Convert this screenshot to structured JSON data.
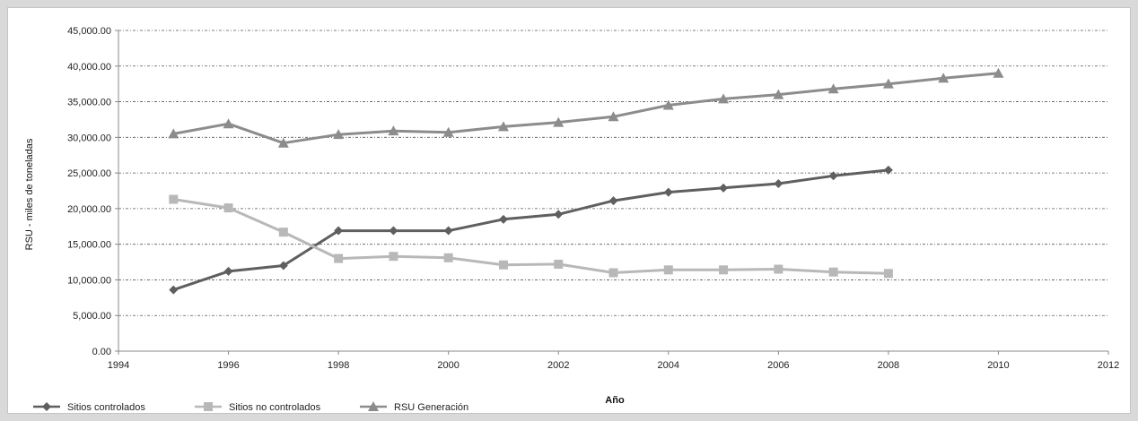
{
  "chart_data": {
    "type": "line",
    "title": "",
    "xlabel": "Año",
    "ylabel": "RSU - miles de toneladas",
    "xlim": [
      1994,
      2012
    ],
    "ylim": [
      0,
      45000
    ],
    "x_ticks": [
      1994,
      1996,
      1998,
      2000,
      2002,
      2004,
      2006,
      2008,
      2010,
      2012
    ],
    "y_ticks": [
      0,
      5000,
      10000,
      15000,
      20000,
      25000,
      30000,
      35000,
      40000,
      45000
    ],
    "y_tick_labels": [
      "0.00",
      "5,000.00",
      "10,000.00",
      "15,000.00",
      "20,000.00",
      "25,000.00",
      "30,000.00",
      "35,000.00",
      "40,000.00",
      "45,000.00"
    ],
    "grid": "horizontal dashed",
    "legend_position": "bottom-left",
    "series": [
      {
        "name": "Sitios controlados",
        "color": "#5f5f5f",
        "marker": "diamond",
        "x": [
          1995,
          1996,
          1997,
          1998,
          1999,
          2000,
          2001,
          2002,
          2003,
          2004,
          2005,
          2006,
          2007,
          2008
        ],
        "y": [
          8600,
          11200,
          12000,
          16900,
          16900,
          16900,
          18500,
          19200,
          21100,
          22300,
          22900,
          23500,
          24600,
          25400
        ]
      },
      {
        "name": "Sitios no controlados",
        "color": "#b8b8b8",
        "marker": "square",
        "x": [
          1995,
          1996,
          1997,
          1998,
          1999,
          2000,
          2001,
          2002,
          2003,
          2004,
          2005,
          2006,
          2007,
          2008
        ],
        "y": [
          21300,
          20100,
          16700,
          13000,
          13300,
          13100,
          12100,
          12200,
          11000,
          11400,
          11400,
          11500,
          11100,
          10900
        ]
      },
      {
        "name": "RSU Generación",
        "color": "#8c8c8c",
        "marker": "triangle",
        "x": [
          1995,
          1996,
          1997,
          1998,
          1999,
          2000,
          2001,
          2002,
          2003,
          2004,
          2005,
          2006,
          2007,
          2008,
          2009,
          2010
        ],
        "y": [
          30500,
          31900,
          29200,
          30400,
          30900,
          30700,
          31500,
          32100,
          32900,
          34500,
          35400,
          36000,
          36800,
          37500,
          38300,
          39000
        ]
      }
    ]
  }
}
